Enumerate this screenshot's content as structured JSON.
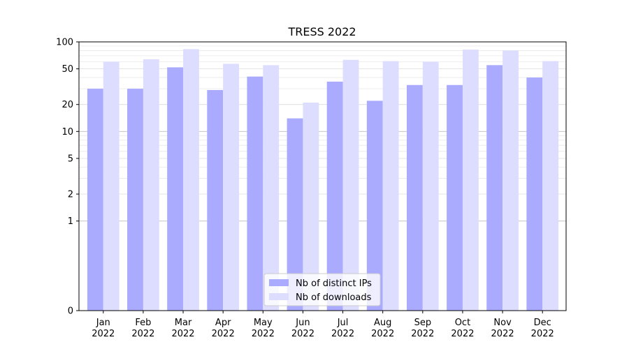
{
  "chart_data": {
    "type": "bar",
    "title": "TRESS 2022",
    "xlabel": "",
    "ylabel": "",
    "yscale": "symlog",
    "ylim": [
      0,
      100
    ],
    "yticks": [
      0,
      1,
      2,
      5,
      10,
      20,
      50,
      100
    ],
    "ytick_labels": [
      "0",
      "1",
      "2",
      "5",
      "10",
      "20",
      "50",
      "100"
    ],
    "categories": [
      "Jan\n2022",
      "Feb\n2022",
      "Mar\n2022",
      "Apr\n2022",
      "May\n2022",
      "Jun\n2022",
      "Jul\n2022",
      "Aug\n2022",
      "Sep\n2022",
      "Oct\n2022",
      "Nov\n2022",
      "Dec\n2022"
    ],
    "category_lines": [
      [
        "Jan",
        "2022"
      ],
      [
        "Feb",
        "2022"
      ],
      [
        "Mar",
        "2022"
      ],
      [
        "Apr",
        "2022"
      ],
      [
        "May",
        "2022"
      ],
      [
        "Jun",
        "2022"
      ],
      [
        "Jul",
        "2022"
      ],
      [
        "Aug",
        "2022"
      ],
      [
        "Sep",
        "2022"
      ],
      [
        "Oct",
        "2022"
      ],
      [
        "Nov",
        "2022"
      ],
      [
        "Dec",
        "2022"
      ]
    ],
    "series": [
      {
        "name": "Nb of distinct IPs",
        "color": "#aaaaff",
        "values": [
          30,
          30,
          52,
          29,
          41,
          14,
          36,
          22,
          33,
          33,
          55,
          40
        ]
      },
      {
        "name": "Nb of downloads",
        "color": "#ddddff",
        "values": [
          60,
          64,
          83,
          57,
          55,
          21,
          63,
          61,
          60,
          82,
          80,
          61
        ]
      }
    ],
    "grid": true,
    "legend_position": "bottom-center"
  }
}
